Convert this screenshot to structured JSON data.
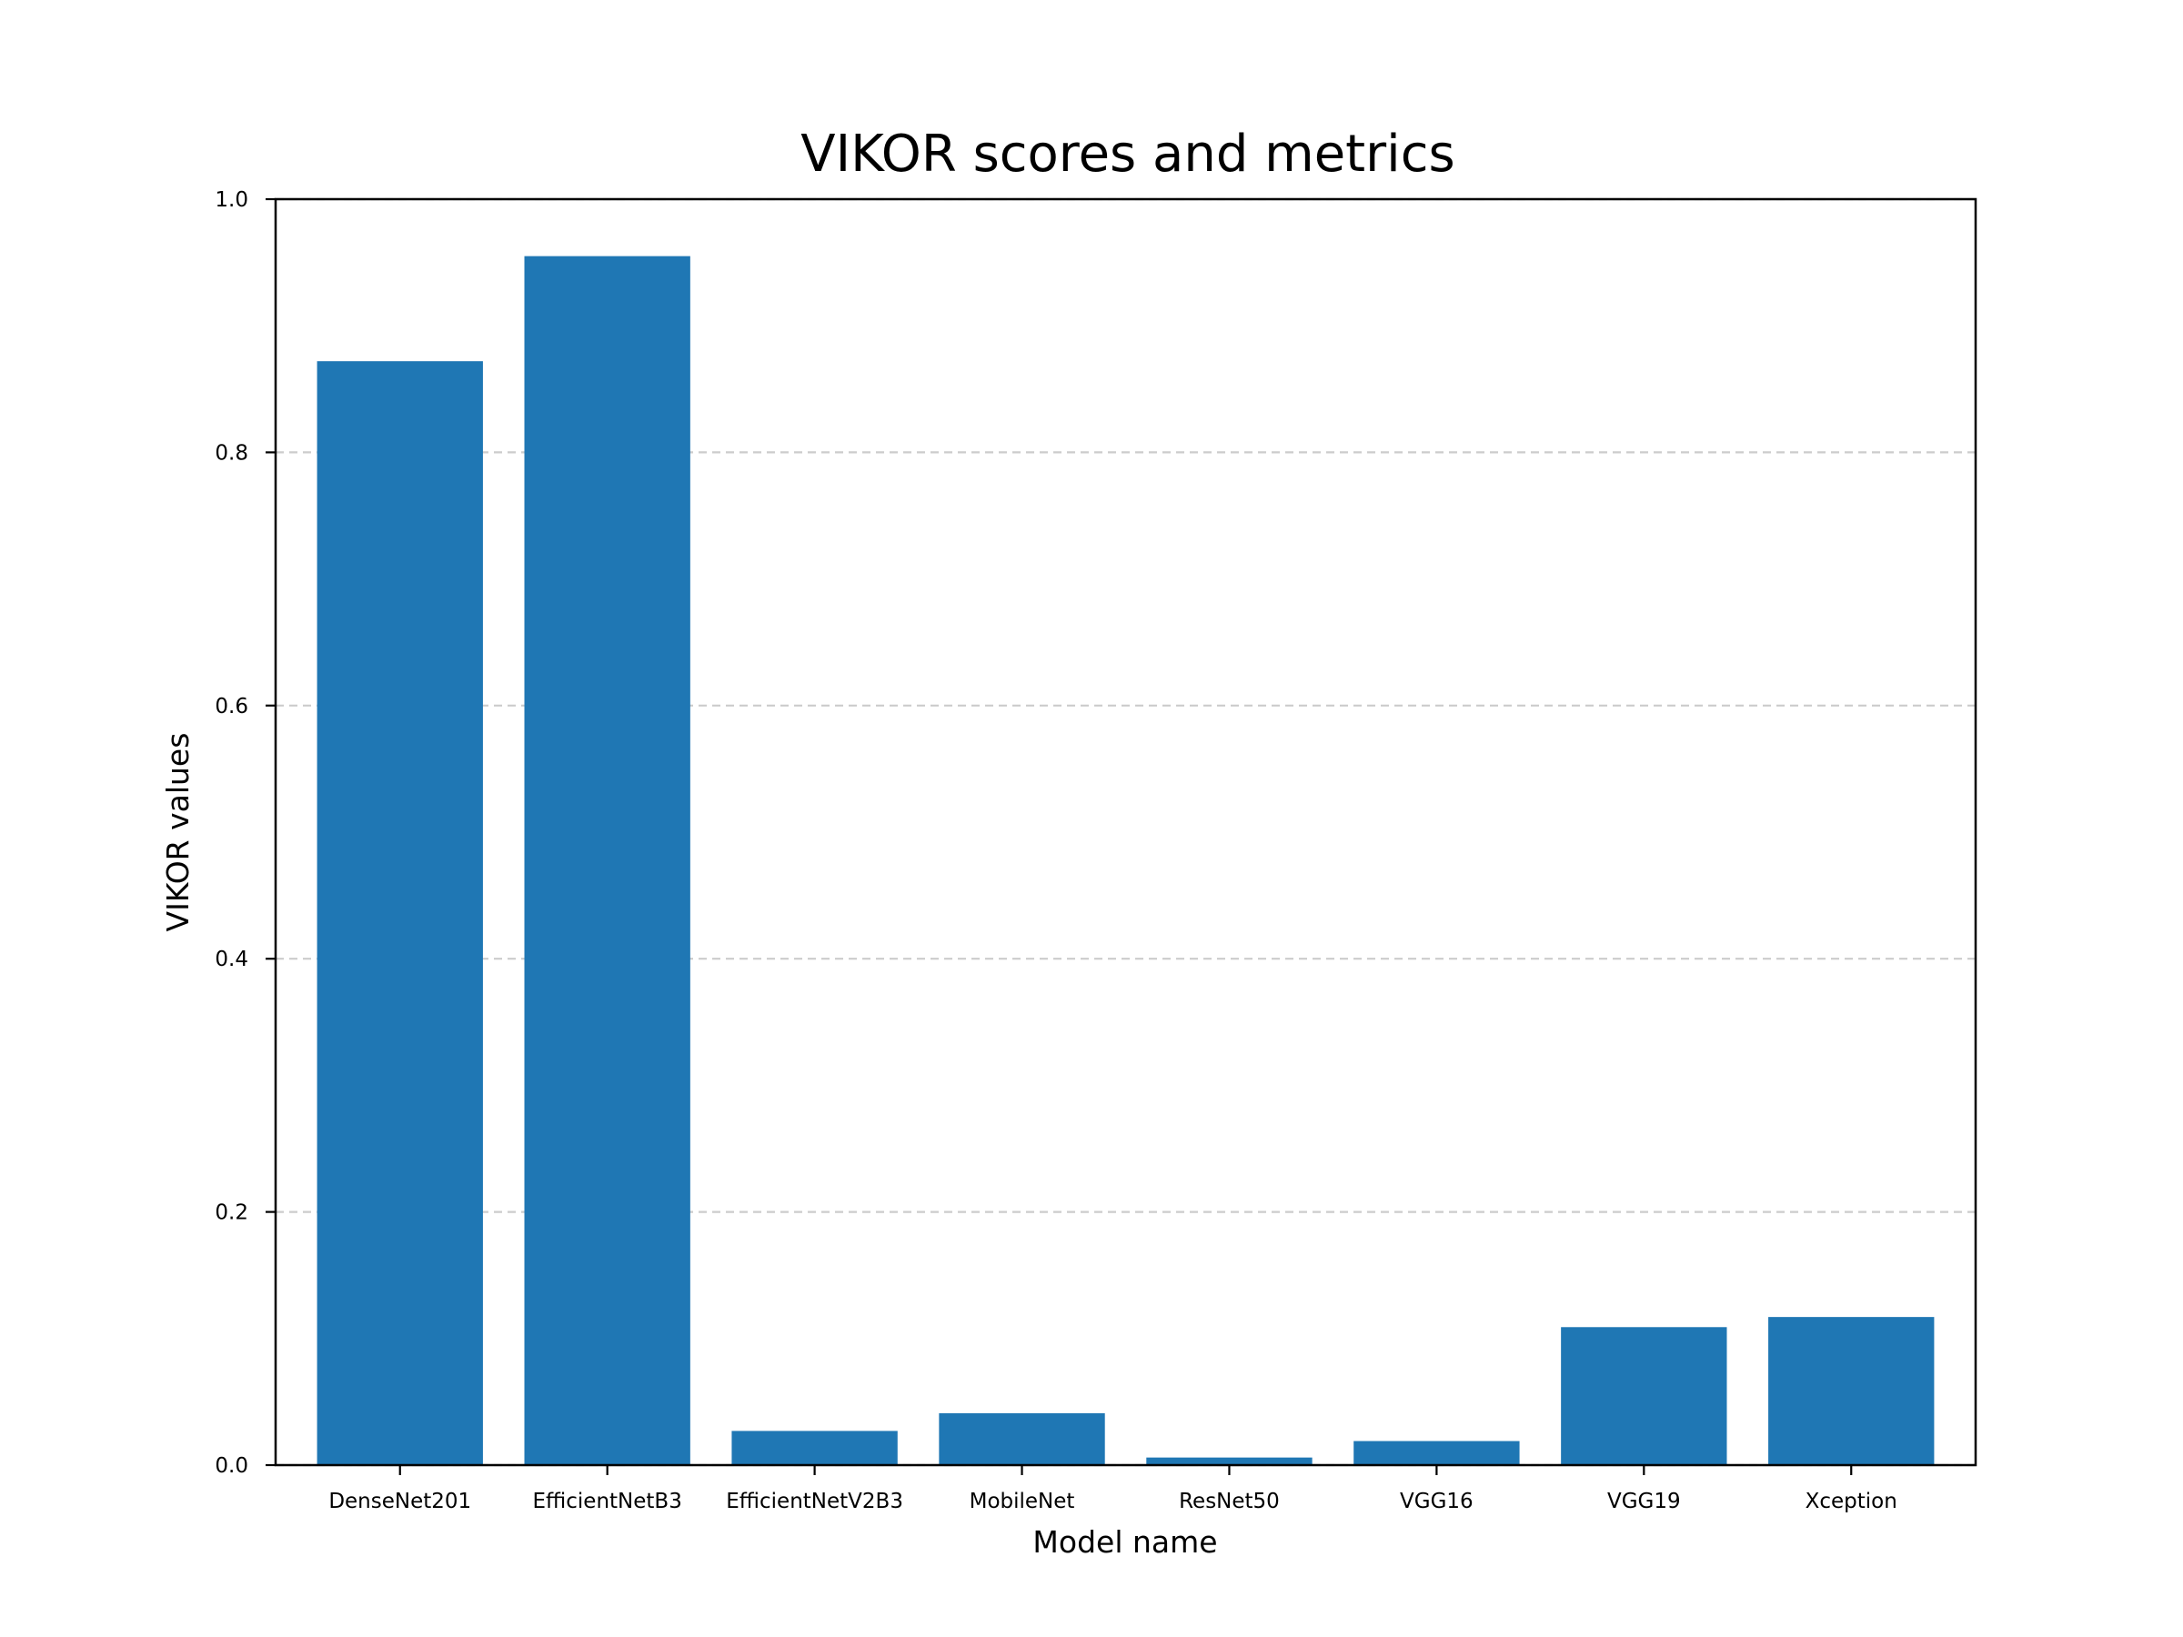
{
  "chart_data": {
    "type": "bar",
    "title": "VIKOR scores and metrics",
    "xlabel": "Model name",
    "ylabel": "VIKOR values",
    "categories": [
      "DenseNet201",
      "EfficientNetB3",
      "EfficientNetV2B3",
      "MobileNet",
      "ResNet50",
      "VGG16",
      "VGG19",
      "Xception"
    ],
    "values": [
      0.872,
      0.955,
      0.027,
      0.041,
      0.006,
      0.019,
      0.109,
      0.117
    ],
    "ylim": [
      0,
      1.0
    ],
    "yticks": [
      "0.0",
      "0.2",
      "0.4",
      "0.6",
      "0.8",
      "1.0"
    ],
    "grid": "y dashed",
    "bar_color": "#1f77b4",
    "grid_color": "#cccccc"
  }
}
